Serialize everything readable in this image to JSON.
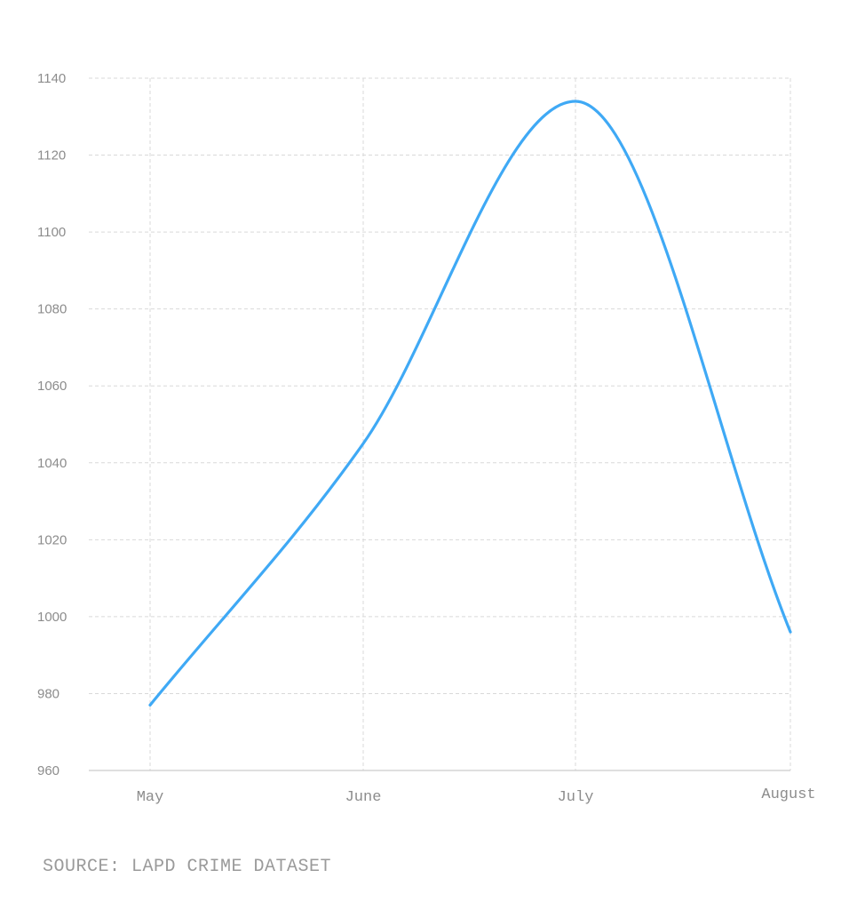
{
  "chart_data": {
    "type": "line",
    "categories": [
      "May",
      "June",
      "July",
      "August"
    ],
    "series": [
      {
        "values": [
          977,
          1045,
          1134,
          996
        ]
      }
    ],
    "ylim": [
      960,
      1140
    ],
    "yticks": [
      960,
      980,
      1000,
      1020,
      1040,
      1060,
      1080,
      1100,
      1120,
      1140
    ],
    "grid": true,
    "smooth": true,
    "colors": {
      "line": "#3fa9f5",
      "grid": "#d9d9d9",
      "axis": "#cccccc"
    }
  },
  "footer": {
    "source": "SOURCE: LAPD CRIME DATASET"
  }
}
